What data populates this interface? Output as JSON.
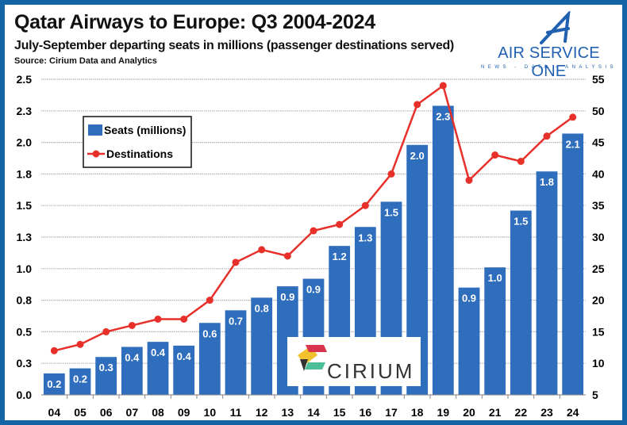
{
  "header": {
    "title": "Qatar Airways to Europe: Q3 2004-2024",
    "subtitle": "July-September departing seats in millions (passenger destinations served)",
    "source": "Source: Cirium Data and Analytics"
  },
  "logos": {
    "air_service_one": "AIR SERVICE ONE",
    "air_service_one_tag": "NEWS - DATA - ANALYSIS",
    "cirium": "CIRIUM"
  },
  "colors": {
    "bar": "#2f6dbd",
    "line": "#e8302a",
    "border": "#1565a6"
  },
  "chart_data": {
    "type": "bar+line",
    "categories": [
      "04",
      "05",
      "06",
      "07",
      "08",
      "09",
      "10",
      "11",
      "12",
      "13",
      "14",
      "15",
      "16",
      "17",
      "18",
      "19",
      "20",
      "21",
      "22",
      "23",
      "24"
    ],
    "series": [
      {
        "name": "Seats (millions)",
        "type": "bar",
        "axis": "left",
        "values": [
          0.17,
          0.21,
          0.3,
          0.38,
          0.42,
          0.39,
          0.57,
          0.67,
          0.77,
          0.86,
          0.92,
          1.18,
          1.33,
          1.53,
          1.98,
          2.29,
          0.85,
          1.01,
          1.46,
          1.77,
          2.07
        ],
        "labels": [
          "0.2",
          "0.2",
          "0.3",
          "0.4",
          "0.4",
          "0.4",
          "0.6",
          "0.7",
          "0.8",
          "0.9",
          "0.9",
          "1.2",
          "1.3",
          "1.5",
          "2.0",
          "2.3",
          "0.9",
          "1.0",
          "1.5",
          "1.8",
          "2.1"
        ]
      },
      {
        "name": "Destinations",
        "type": "line",
        "axis": "right",
        "values": [
          12,
          13,
          15,
          16,
          17,
          17,
          20,
          26,
          28,
          27,
          31,
          32,
          35,
          40,
          51,
          54,
          39,
          43,
          42,
          46,
          49
        ]
      }
    ],
    "y_left": {
      "range": [
        0,
        2.5
      ],
      "ticks": [
        0,
        0.25,
        0.5,
        0.75,
        1.0,
        1.25,
        1.5,
        1.75,
        2.0,
        2.25,
        2.5
      ],
      "tick_labels": [
        "0.0",
        "0.3",
        "0.5",
        "0.8",
        "1.0",
        "1.3",
        "1.5",
        "1.8",
        "2.0",
        "2.3",
        "2.5"
      ]
    },
    "y_right": {
      "range": [
        5,
        55
      ],
      "ticks": [
        5,
        10,
        15,
        20,
        25,
        30,
        35,
        40,
        45,
        50,
        55
      ],
      "tick_labels": [
        "5",
        "10",
        "15",
        "20",
        "25",
        "30",
        "35",
        "40",
        "45",
        "50",
        "55"
      ]
    },
    "grid": true,
    "legend": "top-left"
  }
}
